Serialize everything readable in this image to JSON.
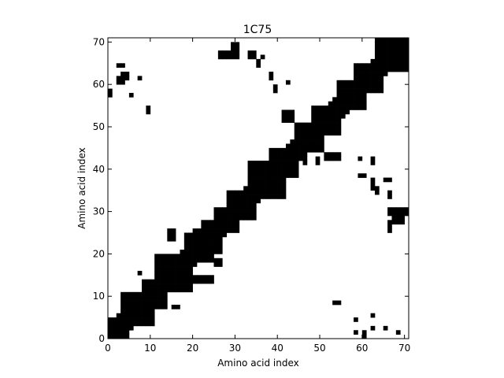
{
  "chart_data": {
    "type": "heatmap",
    "title": "1C75",
    "xlabel": "Amino acid index",
    "ylabel": "Amino acid index",
    "xlim": [
      0,
      71
    ],
    "ylim": [
      0,
      71
    ],
    "xticks": [
      "0",
      "10",
      "20",
      "30",
      "40",
      "50",
      "60",
      "70"
    ],
    "yticks": [
      "0",
      "10",
      "20",
      "30",
      "40",
      "50",
      "60",
      "70"
    ],
    "cell_color": "#000000",
    "background": "#ffffff",
    "diagonal_band": {
      "bandwidth": 3
    },
    "blocks": [
      {
        "x": [
          0,
          5
        ],
        "y": [
          0,
          5
        ]
      },
      {
        "x": [
          3,
          11
        ],
        "y": [
          3,
          11
        ]
      },
      {
        "x": [
          8,
          14
        ],
        "y": [
          7,
          14
        ]
      },
      {
        "x": [
          11,
          20
        ],
        "y": [
          11,
          20
        ]
      },
      {
        "x": [
          14,
          19
        ],
        "y": [
          15,
          20
        ]
      },
      {
        "x": [
          18,
          25
        ],
        "y": [
          18,
          25
        ]
      },
      {
        "x": [
          20,
          27
        ],
        "y": [
          20,
          26
        ]
      },
      {
        "x": [
          25,
          31
        ],
        "y": [
          25,
          31
        ]
      },
      {
        "x": [
          28,
          35
        ],
        "y": [
          28,
          35
        ]
      },
      {
        "x": [
          33,
          42
        ],
        "y": [
          33,
          42
        ]
      },
      {
        "x": [
          38,
          45
        ],
        "y": [
          38,
          45
        ]
      },
      {
        "x": [
          44,
          51
        ],
        "y": [
          44,
          51
        ]
      },
      {
        "x": [
          48,
          55
        ],
        "y": [
          48,
          55
        ]
      },
      {
        "x": [
          54,
          61
        ],
        "y": [
          54,
          61
        ]
      },
      {
        "x": [
          58,
          65
        ],
        "y": [
          58,
          65
        ]
      },
      {
        "x": [
          63,
          71
        ],
        "y": [
          63,
          71
        ]
      }
    ],
    "contacts": [
      {
        "x": [
          0,
          1
        ],
        "y": [
          57,
          59
        ]
      },
      {
        "x": [
          2,
          4
        ],
        "y": [
          60,
          62
        ]
      },
      {
        "x": [
          3,
          5
        ],
        "y": [
          61,
          63
        ]
      },
      {
        "x": [
          2,
          4
        ],
        "y": [
          64,
          65
        ]
      },
      {
        "x": [
          5,
          6
        ],
        "y": [
          57,
          58
        ]
      },
      {
        "x": [
          7,
          8
        ],
        "y": [
          61,
          62
        ]
      },
      {
        "x": [
          9,
          10
        ],
        "y": [
          53,
          55
        ]
      },
      {
        "x": [
          7,
          8
        ],
        "y": [
          15,
          16
        ]
      },
      {
        "x": [
          26,
          31
        ],
        "y": [
          66,
          68
        ]
      },
      {
        "x": [
          29,
          31
        ],
        "y": [
          68,
          70
        ]
      },
      {
        "x": [
          33,
          35
        ],
        "y": [
          66,
          68
        ]
      },
      {
        "x": [
          35,
          36
        ],
        "y": [
          64,
          66
        ]
      },
      {
        "x": [
          38,
          39
        ],
        "y": [
          61,
          63
        ]
      },
      {
        "x": [
          39,
          40
        ],
        "y": [
          58,
          60
        ]
      },
      {
        "x": [
          42,
          43
        ],
        "y": [
          60,
          61
        ]
      },
      {
        "x": [
          36,
          37
        ],
        "y": [
          66,
          67
        ]
      },
      {
        "x": [
          22,
          25
        ],
        "y": [
          26,
          28
        ]
      },
      {
        "x": [
          14,
          16
        ],
        "y": [
          23,
          26
        ]
      },
      {
        "x": [
          15,
          17
        ],
        "y": [
          7,
          8
        ]
      },
      {
        "x": [
          20,
          25
        ],
        "y": [
          13,
          15
        ]
      },
      {
        "x": [
          25,
          27
        ],
        "y": [
          17,
          19
        ]
      },
      {
        "x": [
          41,
          44
        ],
        "y": [
          51,
          54
        ]
      },
      {
        "x": [
          45,
          46
        ],
        "y": [
          45,
          47
        ]
      },
      {
        "x": [
          46,
          47
        ],
        "y": [
          41,
          43
        ]
      },
      {
        "x": [
          49,
          50
        ],
        "y": [
          41,
          43
        ]
      },
      {
        "x": [
          51,
          55
        ],
        "y": [
          42,
          44
        ]
      },
      {
        "x": [
          59,
          60
        ],
        "y": [
          42,
          43
        ]
      },
      {
        "x": [
          59,
          61
        ],
        "y": [
          38,
          39
        ]
      },
      {
        "x": [
          62,
          63
        ],
        "y": [
          41,
          43
        ]
      },
      {
        "x": [
          62,
          63
        ],
        "y": [
          35,
          38
        ]
      },
      {
        "x": [
          63,
          64
        ],
        "y": [
          34,
          36
        ]
      },
      {
        "x": [
          65,
          67
        ],
        "y": [
          37,
          38
        ]
      },
      {
        "x": [
          66,
          67
        ],
        "y": [
          33,
          35
        ]
      },
      {
        "x": [
          66,
          71
        ],
        "y": [
          29,
          31
        ]
      },
      {
        "x": [
          67,
          70
        ],
        "y": [
          27,
          29
        ]
      },
      {
        "x": [
          66,
          67
        ],
        "y": [
          25,
          28
        ]
      },
      {
        "x": [
          53,
          55
        ],
        "y": [
          8,
          9
        ]
      },
      {
        "x": [
          58,
          59
        ],
        "y": [
          4,
          5
        ]
      },
      {
        "x": [
          58,
          59
        ],
        "y": [
          1,
          2
        ]
      },
      {
        "x": [
          60,
          61
        ],
        "y": [
          0,
          2
        ]
      },
      {
        "x": [
          62,
          63
        ],
        "y": [
          5,
          6
        ]
      },
      {
        "x": [
          62,
          63
        ],
        "y": [
          2,
          3
        ]
      },
      {
        "x": [
          65,
          66
        ],
        "y": [
          2,
          3
        ]
      },
      {
        "x": [
          68,
          69
        ],
        "y": [
          1,
          2
        ]
      }
    ]
  }
}
